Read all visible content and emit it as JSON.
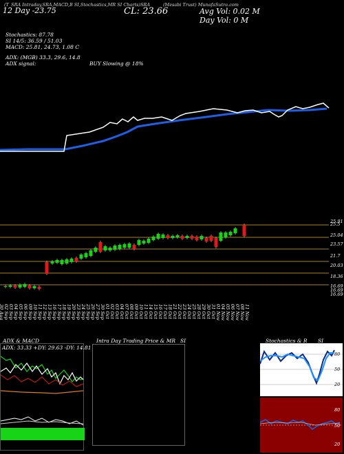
{
  "header": {
    "overlap_text": "(T_SRA Intraday,SRA,MACD,B SI,Stochastics,MR SI Charts)SRA",
    "date_line": "12 Day -23.75",
    "close_label": "CL: 23.66",
    "avg_vol": "Avg Vol: 0.02 M",
    "day_vol": "Day Vol: 0 M",
    "company": "(Mesabi Trust) MunafaSutra.com"
  },
  "indicators": {
    "stochastics": "Stochastics: 87.78",
    "si": "SI 14/5: 36.59 / 51.03",
    "macd": "MACD: 25.81, 24.73, 1.08 C",
    "adx": "ADX: (MGB) 33.3, 29.6, 14.8",
    "adx_signal": "ADX signal:",
    "buy_signal": "BUY Slowing @ 18%"
  },
  "price_axis": [
    "25.5",
    "25.04",
    "23.57",
    "21.7",
    "20.03",
    "18.36",
    "16.69",
    "16.69",
    "16.69"
  ],
  "price_axis_top_extra": "25.91",
  "dates": [
    "30 Aug",
    "02 Sep",
    "03 Sep",
    "04 Sep",
    "05 Sep",
    "06 Sep",
    "09 Sep",
    "10 Sep",
    "11 Sep",
    "12 Sep",
    "13 Sep",
    "16 Sep",
    "17 Sep",
    "18 Sep",
    "19 Sep",
    "20 Sep",
    "23 Sep",
    "24 Sep",
    "25 Sep",
    "26 Sep",
    "27 Sep",
    "30 Sep",
    "01 Oct",
    "02 Oct",
    "03 Oct",
    "04 Oct",
    "07 Oct",
    "08 Oct",
    "09 Oct",
    "10 Oct",
    "11 Oct",
    "14 Oct",
    "15 Oct",
    "16 Oct",
    "17 Oct",
    "18 Oct",
    "21 Oct",
    "22 Oct",
    "23 Oct",
    "24 Oct",
    "25 Oct",
    "28 Oct",
    "29 Oct",
    "30 Oct",
    "31 Oct",
    "01 Nov",
    "04 Nov",
    "05 Nov",
    "06 Nov",
    "07 Nov",
    "08 Nov",
    "11 Nov"
  ],
  "bottom_panels": {
    "left_title": "ADX & MACD",
    "left_values": "ADX: 33.33 +DY: 29.63 -DY: 14.81",
    "middle_title": "Intra Day Trading Price & MR",
    "middle_title_right": "SI",
    "right_title": "Stochastics & R",
    "right_title_right": "SI",
    "stoch_ticks": [
      "80",
      "50",
      "20"
    ],
    "rsi_ticks": [
      "80",
      "50",
      "20"
    ]
  },
  "colors": {
    "background": "#000000",
    "price_line": "#ffffff",
    "ma_line": "#1f5fe6",
    "bull_candle": "#17d417",
    "bear_candle": "#e01a1a",
    "gridline": "#8a6a1a",
    "rsi_panel": "#8b0000",
    "stoch_panel": "#ffffff"
  }
}
